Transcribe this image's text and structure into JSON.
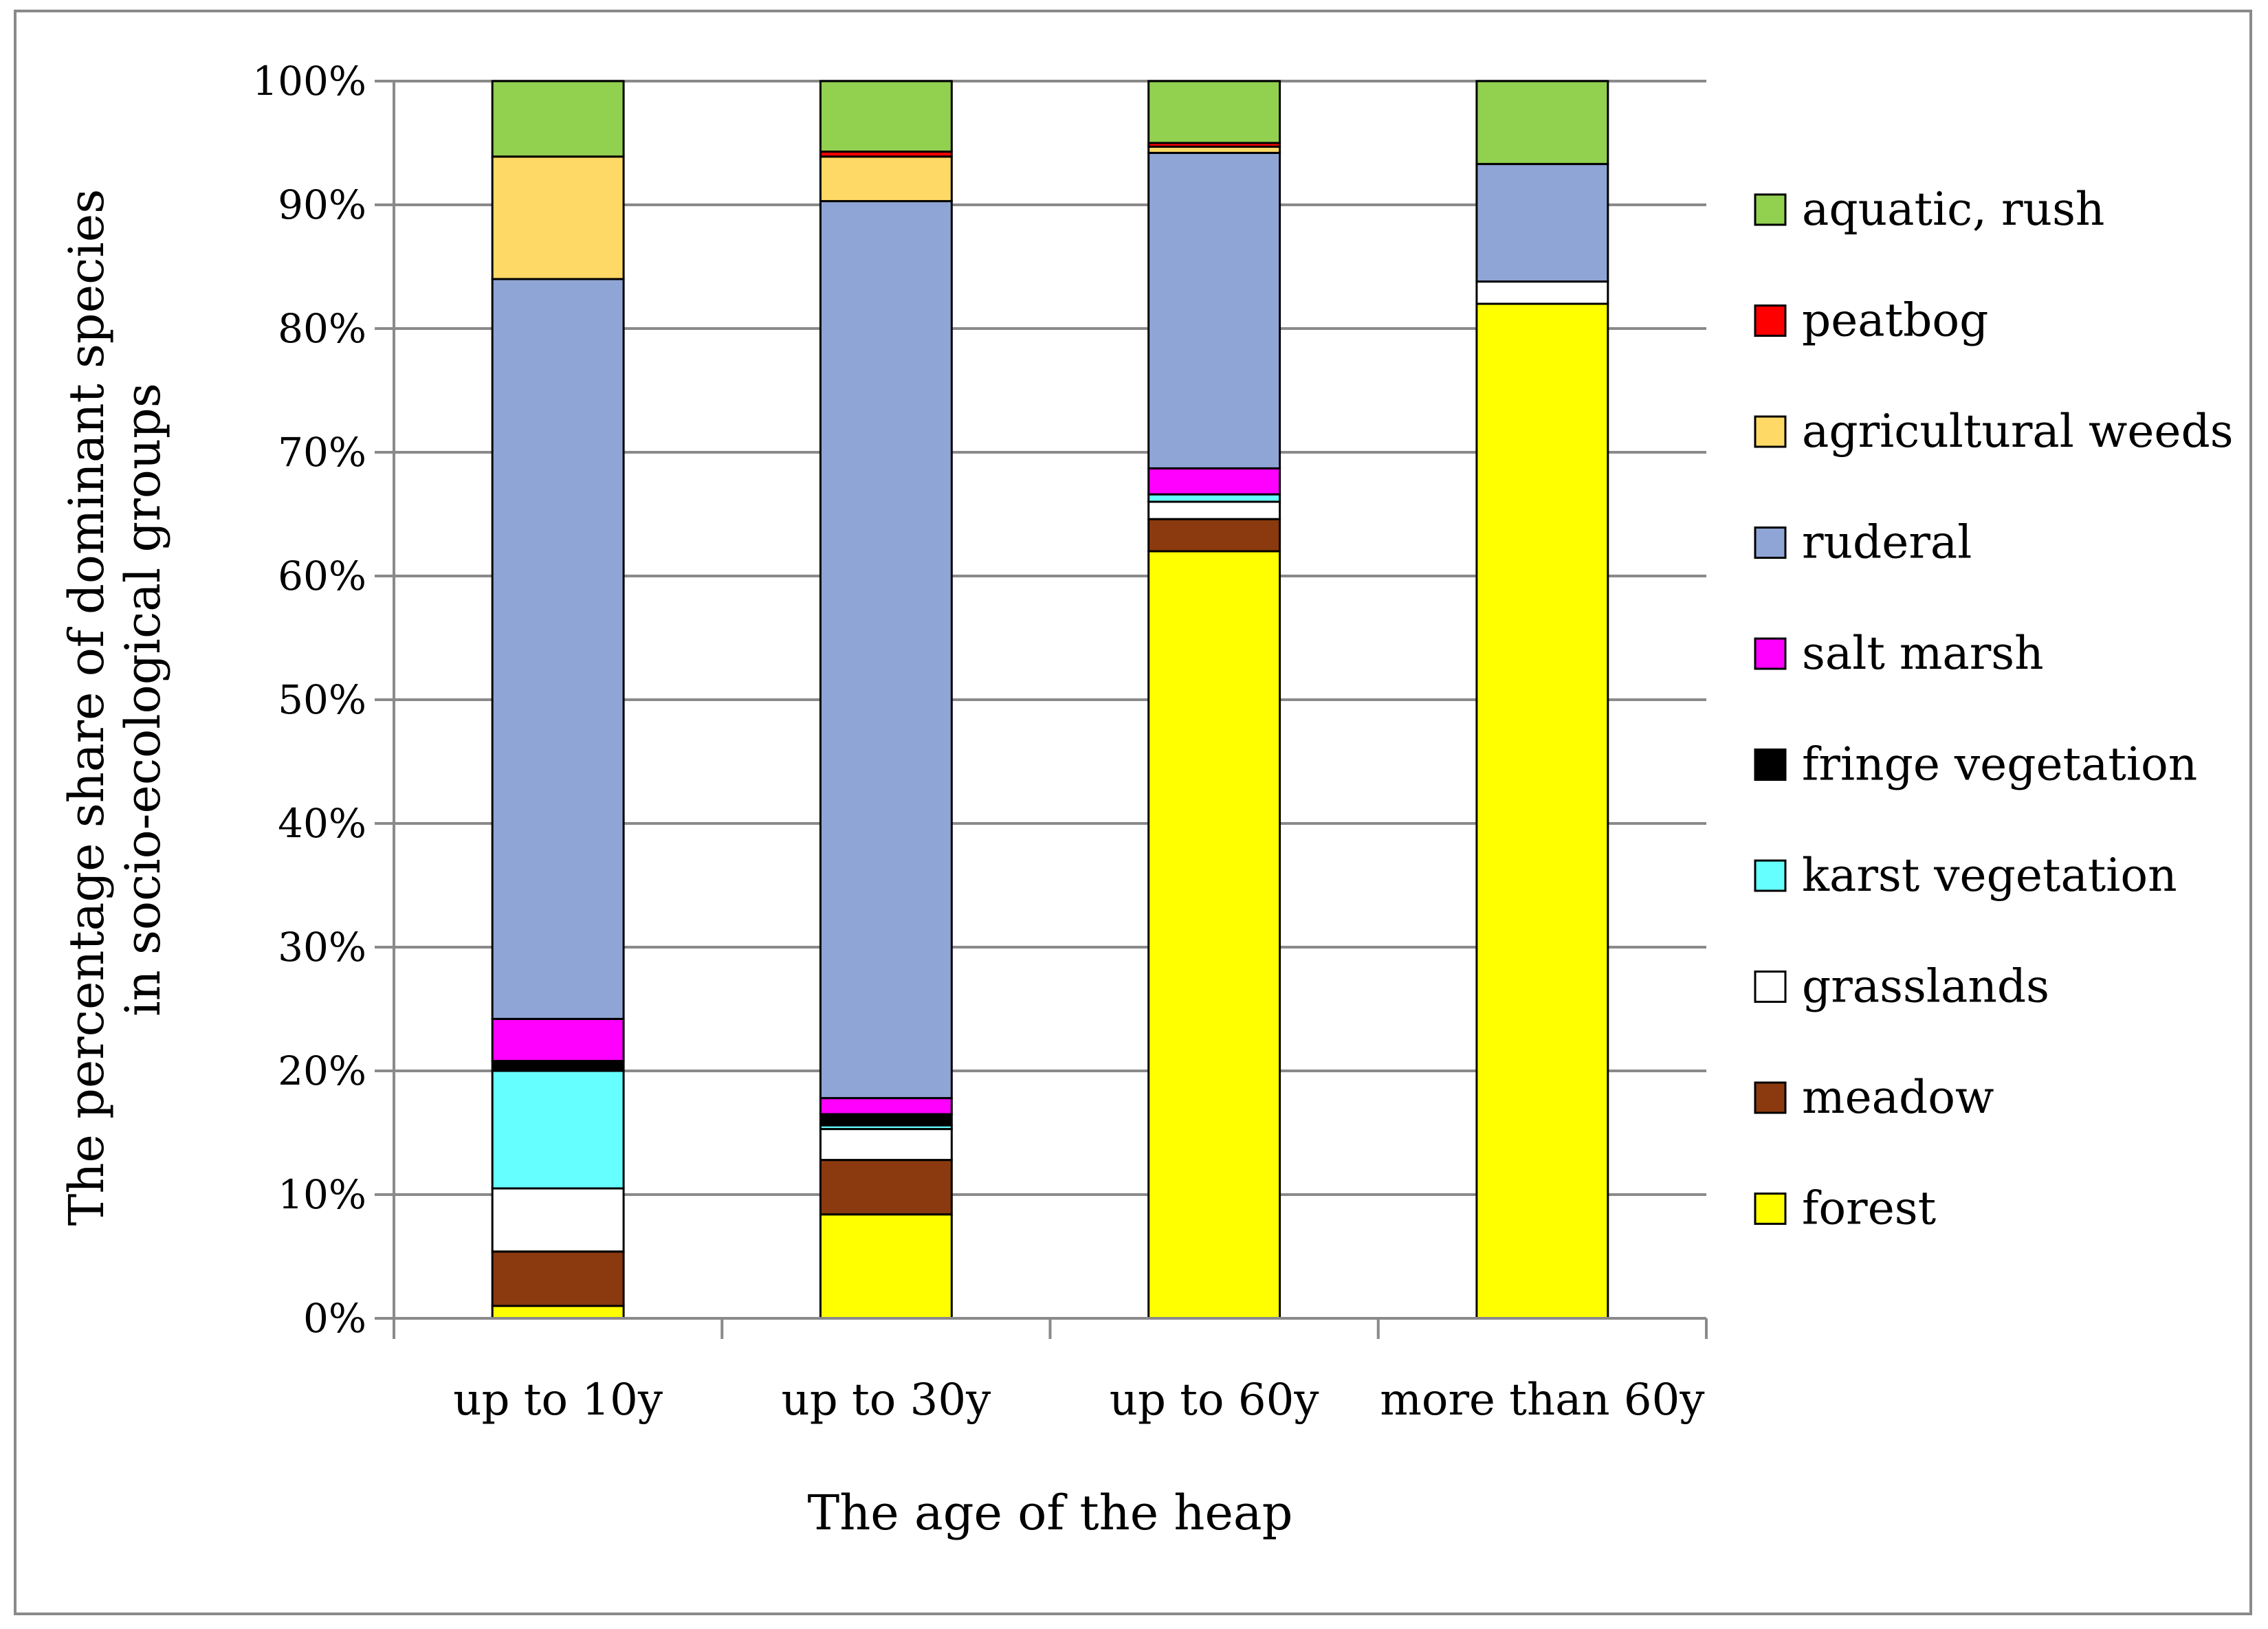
{
  "chart_data": {
    "type": "bar",
    "stacked": true,
    "percent": true,
    "title": "",
    "xlabel": "The age of the heap",
    "ylabel_lines": [
      "The percentage share of dominant species",
      "in socio-ecological groups"
    ],
    "ylim": [
      0,
      100
    ],
    "y_ticks": [
      "0%",
      "10%",
      "20%",
      "30%",
      "40%",
      "50%",
      "60%",
      "70%",
      "80%",
      "90%",
      "100%"
    ],
    "categories": [
      "up to 10y",
      "up to 30y",
      "up to 60y",
      "more than 60y"
    ],
    "legend_position": "right",
    "series": [
      {
        "name": "forest",
        "color": "#ffff00",
        "values": [
          1.0,
          8.4,
          62.0,
          82.0
        ]
      },
      {
        "name": "meadow",
        "color": "#8b3a0f",
        "values": [
          4.4,
          4.4,
          2.6,
          0.0
        ]
      },
      {
        "name": "grasslands",
        "color": "#ffffff",
        "values": [
          5.1,
          2.5,
          1.4,
          1.8
        ]
      },
      {
        "name": "karst vegetation",
        "color": "#66ffff",
        "values": [
          9.5,
          0.3,
          0.6,
          0.0
        ]
      },
      {
        "name": "fringe vegetation",
        "color": "#000000",
        "values": [
          0.8,
          0.9,
          0.0,
          0.0
        ]
      },
      {
        "name": "salt marsh",
        "color": "#ff00ff",
        "values": [
          3.4,
          1.3,
          2.1,
          0.0
        ]
      },
      {
        "name": "ruderal",
        "color": "#8fa5d5",
        "values": [
          59.8,
          72.5,
          25.5,
          9.5
        ]
      },
      {
        "name": "agricultural weeds",
        "color": "#ffd966",
        "values": [
          9.9,
          3.6,
          0.5,
          0.0
        ]
      },
      {
        "name": "peatbog",
        "color": "#ff0000",
        "values": [
          0.0,
          0.4,
          0.3,
          0.0
        ]
      },
      {
        "name": "aquatic, rush",
        "color": "#92d050",
        "values": [
          6.1,
          5.7,
          5.0,
          6.7
        ]
      }
    ]
  }
}
